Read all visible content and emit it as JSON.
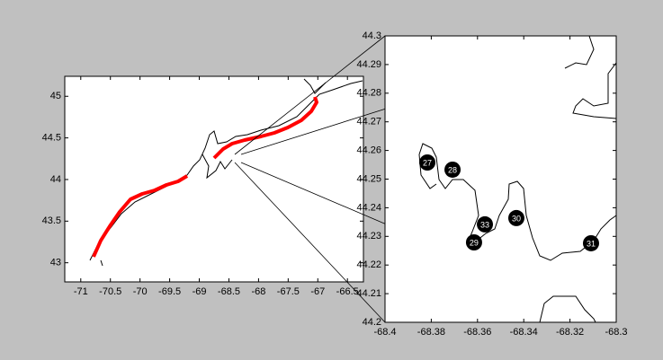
{
  "chart_data": [
    {
      "type": "map",
      "xlim": [
        -71.27,
        -66.23
      ],
      "ylim": [
        42.77,
        45.24
      ],
      "xticks": [
        -71,
        -70.5,
        -70,
        -69.5,
        -69,
        -68.5,
        -68,
        -67.5,
        -67,
        -66.5
      ],
      "yticks": [
        43,
        43.5,
        44,
        44.5,
        45
      ]
    },
    {
      "type": "scatter",
      "xlim": [
        -68.4,
        -68.3
      ],
      "ylim": [
        44.2,
        44.3
      ],
      "xticks": [
        -68.4,
        -68.38,
        -68.36,
        -68.34,
        -68.32,
        -68.3
      ],
      "yticks": [
        44.2,
        44.21,
        44.22,
        44.23,
        44.24,
        44.25,
        44.26,
        44.27,
        44.28,
        44.29,
        44.3
      ],
      "x": [
        -68.3817,
        -68.3708,
        -68.3568,
        -68.3615,
        -68.3432,
        -68.3109
      ],
      "y": [
        44.2558,
        44.2533,
        44.2342,
        44.2279,
        44.2364,
        44.2276
      ],
      "point_labels": [
        "27",
        "28",
        "33",
        "29",
        "30",
        "31"
      ]
    }
  ]
}
